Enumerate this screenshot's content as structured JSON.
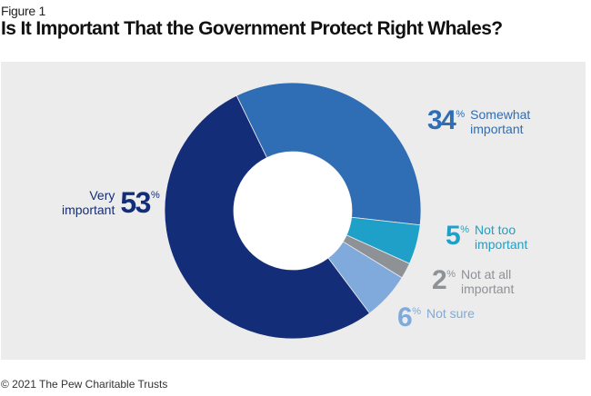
{
  "figure_label": "Figure 1",
  "title": "Is It Important That the Government Protect Right Whales?",
  "footer": "© 2021 The Pew Charitable Trusts",
  "chart_data": {
    "type": "pie",
    "subtype": "donut",
    "title": "Is It Important That the Government Protect Right Whales?",
    "start_angle_deg": -26,
    "direction": "clockwise",
    "slices": [
      {
        "label": "Somewhat important",
        "label_lines": [
          "Somewhat",
          "important"
        ],
        "value": 34,
        "display": "34",
        "color": "#2f6db4"
      },
      {
        "label": "Not too important",
        "label_lines": [
          "Not too",
          "important"
        ],
        "value": 5,
        "display": "5",
        "color": "#1ea0c8"
      },
      {
        "label": "Not at all important",
        "label_lines": [
          "Not at all",
          "important"
        ],
        "value": 2,
        "display": "2",
        "color": "#8e9196"
      },
      {
        "label": "Not sure",
        "label_lines": [
          "Not sure"
        ],
        "value": 6,
        "display": "6",
        "color": "#7faadb"
      },
      {
        "label": "Very important",
        "label_lines": [
          "Very",
          "important"
        ],
        "value": 53,
        "display": "53",
        "color": "#142d78"
      }
    ],
    "percent_sign": "%",
    "legend": "direct-labels"
  }
}
